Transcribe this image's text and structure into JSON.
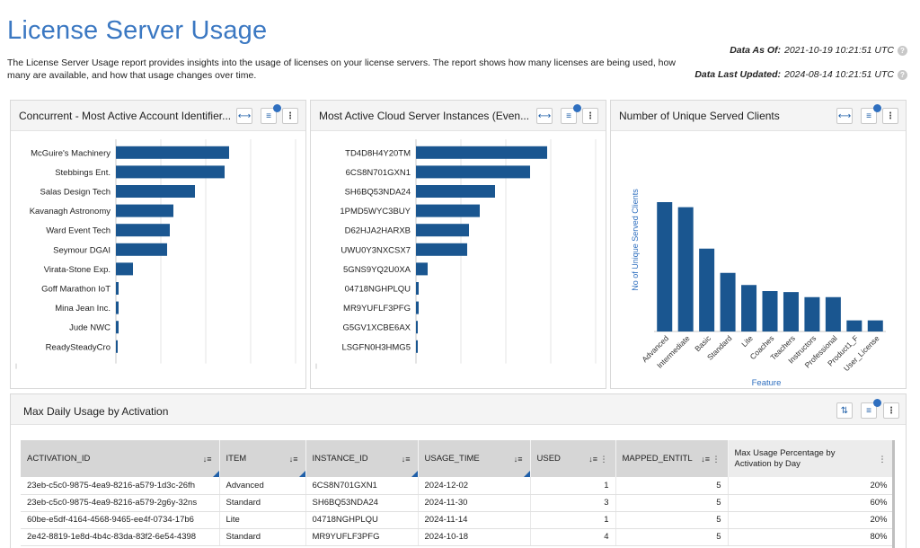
{
  "page": {
    "title": "License Server Usage",
    "description": "The License Server Usage report provides insights into the usage of licenses on your license servers. The report shows how many licenses are being used, how many are available, and how that usage changes over time.",
    "data_as_of_label": "Data As Of:",
    "data_as_of_value": "2021-10-19 10:21:51 UTC",
    "data_last_updated_label": "Data Last Updated:",
    "data_last_updated_value": "2024-08-14 10:21:51 UTC",
    "help_glyph": "?"
  },
  "colors": {
    "bar": "#1a5690",
    "accent": "#3b78c2",
    "badge": "#2f6fbf"
  },
  "panels": {
    "concurrent": {
      "title": "Concurrent - Most Active Account Identifier..."
    },
    "cloud": {
      "title": "Most Active Cloud Server Instances (Even..."
    },
    "unique": {
      "title": "Number of Unique Served Clients"
    },
    "daily": {
      "title": "Max Daily Usage by Activation"
    }
  },
  "chart_data": [
    {
      "type": "bar",
      "orientation": "horizontal",
      "title": "Concurrent - Most Active Account Identifier...",
      "categories": [
        "McGuire's Machinery",
        "Stebbings Ent.",
        "Salas Design Tech",
        "Kavanagh Astronomy",
        "Ward Event Tech",
        "Seymour DGAI",
        "Virata-Stone Exp.",
        "Goff Marathon IoT",
        "Mina Jean Inc.",
        "Jude NWC",
        "ReadySteadyCro"
      ],
      "values": [
        126,
        121,
        88,
        64,
        60,
        57,
        19,
        3,
        3,
        3,
        2
      ],
      "xlim": [
        0,
        200
      ],
      "grid": true
    },
    {
      "type": "bar",
      "orientation": "horizontal",
      "title": "Most Active Cloud Server Instances (Even...",
      "categories": [
        "TD4D8H4Y20TM",
        "6CS8N701GXN1",
        "SH6BQ53NDA24",
        "1PMD5WYC3BUY",
        "D62HJA2HARXB",
        "UWU0Y3NXCSX7",
        "5GNS9YQ2U0XA",
        "04718NGHPLQU",
        "MR9YUFLF3PFG",
        "G5GV1XCBE6AX",
        "LSGFN0H3HMG5"
      ],
      "values": [
        146,
        127,
        88,
        71,
        59,
        57,
        13,
        3,
        3,
        2,
        2
      ],
      "xlim": [
        0,
        200
      ],
      "grid": true
    },
    {
      "type": "bar",
      "title": "Number of Unique Served Clients",
      "xlabel": "Feature",
      "ylabel": "No of Unique Served Clients",
      "categories": [
        "Advanced",
        "Intermediate",
        "Basic",
        "Standard",
        "Lite",
        "Coaches",
        "Teachers",
        "Instructors",
        "Professional",
        "Product1_F",
        "User_License"
      ],
      "values": [
        128,
        123,
        82,
        58,
        46,
        40,
        39,
        34,
        34,
        11,
        11
      ],
      "ylim": [
        0,
        160
      ],
      "grid": false
    }
  ],
  "table": {
    "columns": [
      {
        "label": "ACTIVATION_ID",
        "sort": "↓≡"
      },
      {
        "label": "ITEM",
        "sort": "↓≡"
      },
      {
        "label": "INSTANCE_ID",
        "sort": "↓≡"
      },
      {
        "label": "USAGE_TIME",
        "sort": "↓≡"
      },
      {
        "label": "USED",
        "sort": "↓≡ ⋮"
      },
      {
        "label": "MAPPED_ENTITL",
        "sort": "↓≡ ⋮"
      },
      {
        "label": "Max Usage Percentage by Activation by Day",
        "sort": "⋮"
      }
    ],
    "rows": [
      [
        "23eb-c5c0-9875-4ea9-8216-a579-1d3c-26fh",
        "Advanced",
        "6CS8N701GXN1",
        "2024-12-02",
        "1",
        "5",
        "20%"
      ],
      [
        "23eb-c5c0-9875-4ea9-8216-a579-2g6y-32ns",
        "Standard",
        "SH6BQ53NDA24",
        "2024-11-30",
        "3",
        "5",
        "60%"
      ],
      [
        "60be-e5df-4164-4568-9465-ee4f-0734-17b6",
        "Lite",
        "04718NGHPLQU",
        "2024-11-14",
        "1",
        "5",
        "20%"
      ],
      [
        "2e42-8819-1e8d-4b4c-83da-83f2-6e54-4398",
        "Standard",
        "MR9YUFLF3PFG",
        "2024-10-18",
        "4",
        "5",
        "80%"
      ]
    ]
  },
  "icons": {
    "expand": "⟷",
    "filter": "≡",
    "more": "⋮",
    "sort_updown": "⇅"
  }
}
